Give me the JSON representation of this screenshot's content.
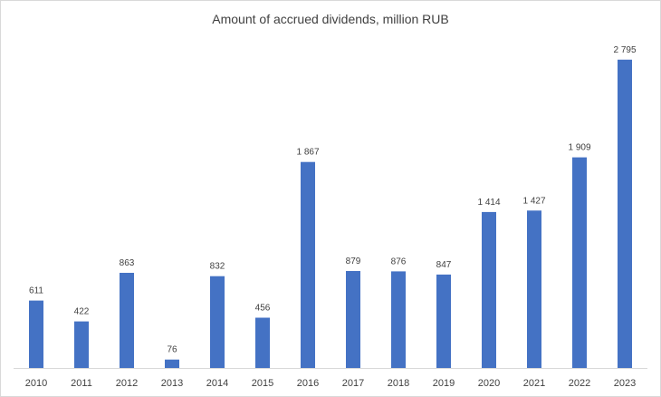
{
  "chart_data": {
    "type": "bar",
    "title": "Amount of accrued dividends, million RUB",
    "xlabel": "",
    "ylabel": "",
    "categories": [
      "2010",
      "2011",
      "2012",
      "2013",
      "2014",
      "2015",
      "2016",
      "2017",
      "2018",
      "2019",
      "2020",
      "2021",
      "2022",
      "2023"
    ],
    "values": [
      611,
      422,
      863,
      76,
      832,
      456,
      1867,
      879,
      876,
      847,
      1414,
      1427,
      1909,
      2795
    ],
    "value_labels": [
      "611",
      "422",
      "863",
      "76",
      "832",
      "456",
      "1 867",
      "879",
      "876",
      "847",
      "1 414",
      "1 427",
      "1 909",
      "2 795"
    ],
    "ylim": [
      0,
      2900
    ],
    "grid": false,
    "legend": "none",
    "bar_color": "#4472C4",
    "axis_color": "#d9d9d9"
  }
}
